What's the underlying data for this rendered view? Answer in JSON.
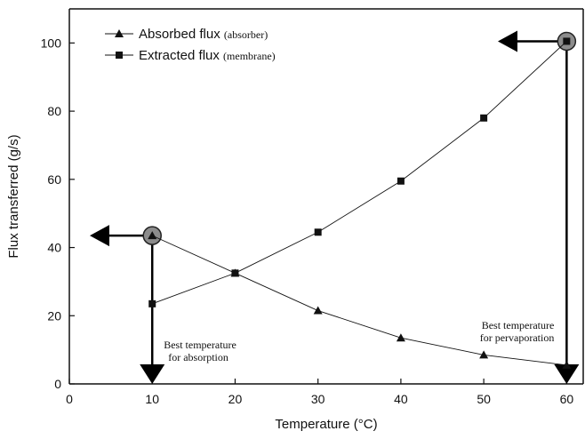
{
  "chart_data": {
    "type": "line",
    "xlabel": "Temperature (°C)",
    "ylabel": "Flux transferred (g/s)",
    "xlim": [
      0,
      62
    ],
    "ylim": [
      0,
      110
    ],
    "x_ticks": [
      0,
      10,
      20,
      30,
      40,
      50,
      60
    ],
    "y_ticks": [
      0,
      20,
      40,
      60,
      80,
      100
    ],
    "grid": false,
    "legend_position": "top-left",
    "series": [
      {
        "name": "Absorbed flux",
        "name_note": "(absorber)",
        "marker": "triangle",
        "color": "#111111",
        "x": [
          10,
          20,
          30,
          40,
          50,
          60
        ],
        "values": [
          43.5,
          32.5,
          21.5,
          13.5,
          8.5,
          5.5
        ]
      },
      {
        "name": "Extracted flux",
        "name_note": "(membrane)",
        "marker": "square",
        "color": "#111111",
        "x": [
          10,
          20,
          30,
          40,
          50,
          60
        ],
        "values": [
          23.5,
          32.5,
          44.5,
          59.5,
          78,
          100.5
        ]
      }
    ],
    "highlights": [
      {
        "x": 10,
        "y": 43.5
      },
      {
        "x": 60,
        "y": 100.5
      }
    ],
    "annotations": [
      {
        "lines": [
          "Best temperature",
          "for absorption"
        ]
      },
      {
        "lines": [
          "Best temperature",
          "for pervaporation"
        ]
      }
    ]
  }
}
